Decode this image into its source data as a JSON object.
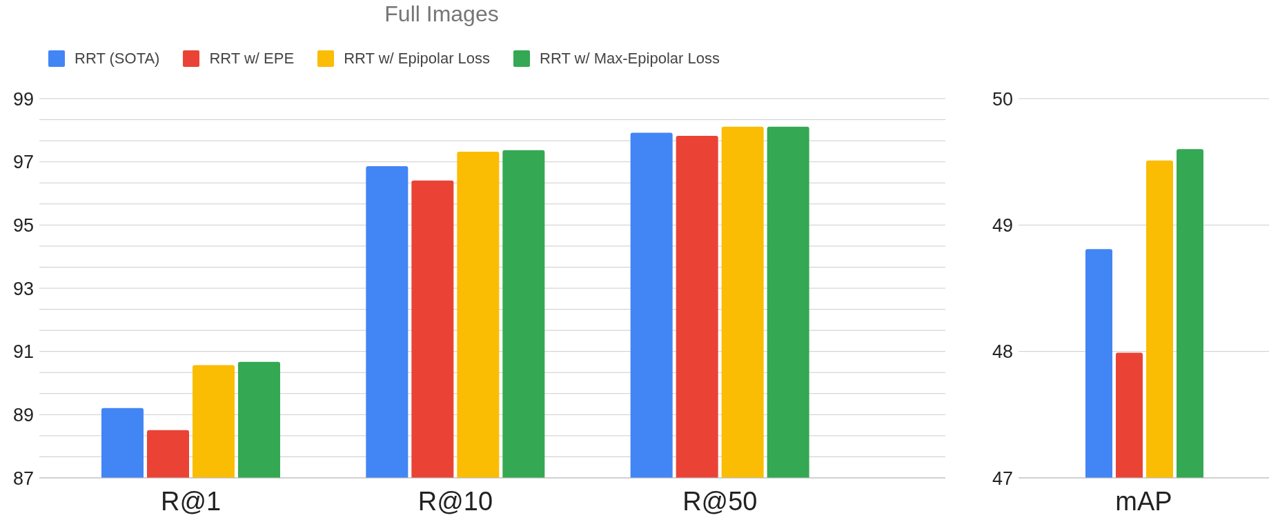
{
  "chart_data": [
    {
      "type": "bar",
      "title": "Full Images",
      "categories": [
        "R@1",
        "R@10",
        "R@50"
      ],
      "series": [
        {
          "name": "RRT (SOTA)",
          "color": "#4285f4",
          "values": [
            89.21,
            96.86,
            97.92
          ]
        },
        {
          "name": "RRT w/ EPE",
          "color": "#ea4335",
          "values": [
            88.51,
            96.41,
            97.82
          ]
        },
        {
          "name": "RRT w/ Epipolar Loss",
          "color": "#fbbc04",
          "values": [
            90.57,
            97.32,
            98.11
          ]
        },
        {
          "name": "RRT w/ Max-Epipolar Loss",
          "color": "#34a853",
          "values": [
            90.67,
            97.37,
            98.11
          ]
        }
      ],
      "ylim": [
        87,
        99
      ],
      "yticks": [
        87,
        {
          "value": 87.667,
          "label": null
        },
        {
          "value": 88.333,
          "label": null
        },
        89,
        {
          "value": 89.667,
          "label": null
        },
        {
          "value": 90.333,
          "label": null
        },
        91,
        {
          "value": 91.667,
          "label": null
        },
        {
          "value": 92.333,
          "label": null
        },
        93,
        {
          "value": 93.667,
          "label": null
        },
        {
          "value": 94.333,
          "label": null
        },
        95,
        {
          "value": 95.667,
          "label": null
        },
        {
          "value": 96.333,
          "label": null
        },
        97,
        {
          "value": 97.667,
          "label": null
        },
        {
          "value": 98.333,
          "label": null
        },
        99
      ],
      "grid": "y",
      "legend": "top left"
    },
    {
      "type": "bar",
      "categories": [
        "mAP"
      ],
      "series": [
        {
          "color": "#4285f4",
          "values": [
            48.81
          ]
        },
        {
          "color": "#ea4335",
          "values": [
            47.99
          ]
        },
        {
          "color": "#fbbc04",
          "values": [
            49.51
          ]
        },
        {
          "color": "#34a853",
          "values": [
            49.6
          ]
        }
      ],
      "ylim": [
        47,
        50
      ],
      "yticks": [
        47,
        48,
        49,
        50
      ],
      "grid": "y"
    }
  ]
}
